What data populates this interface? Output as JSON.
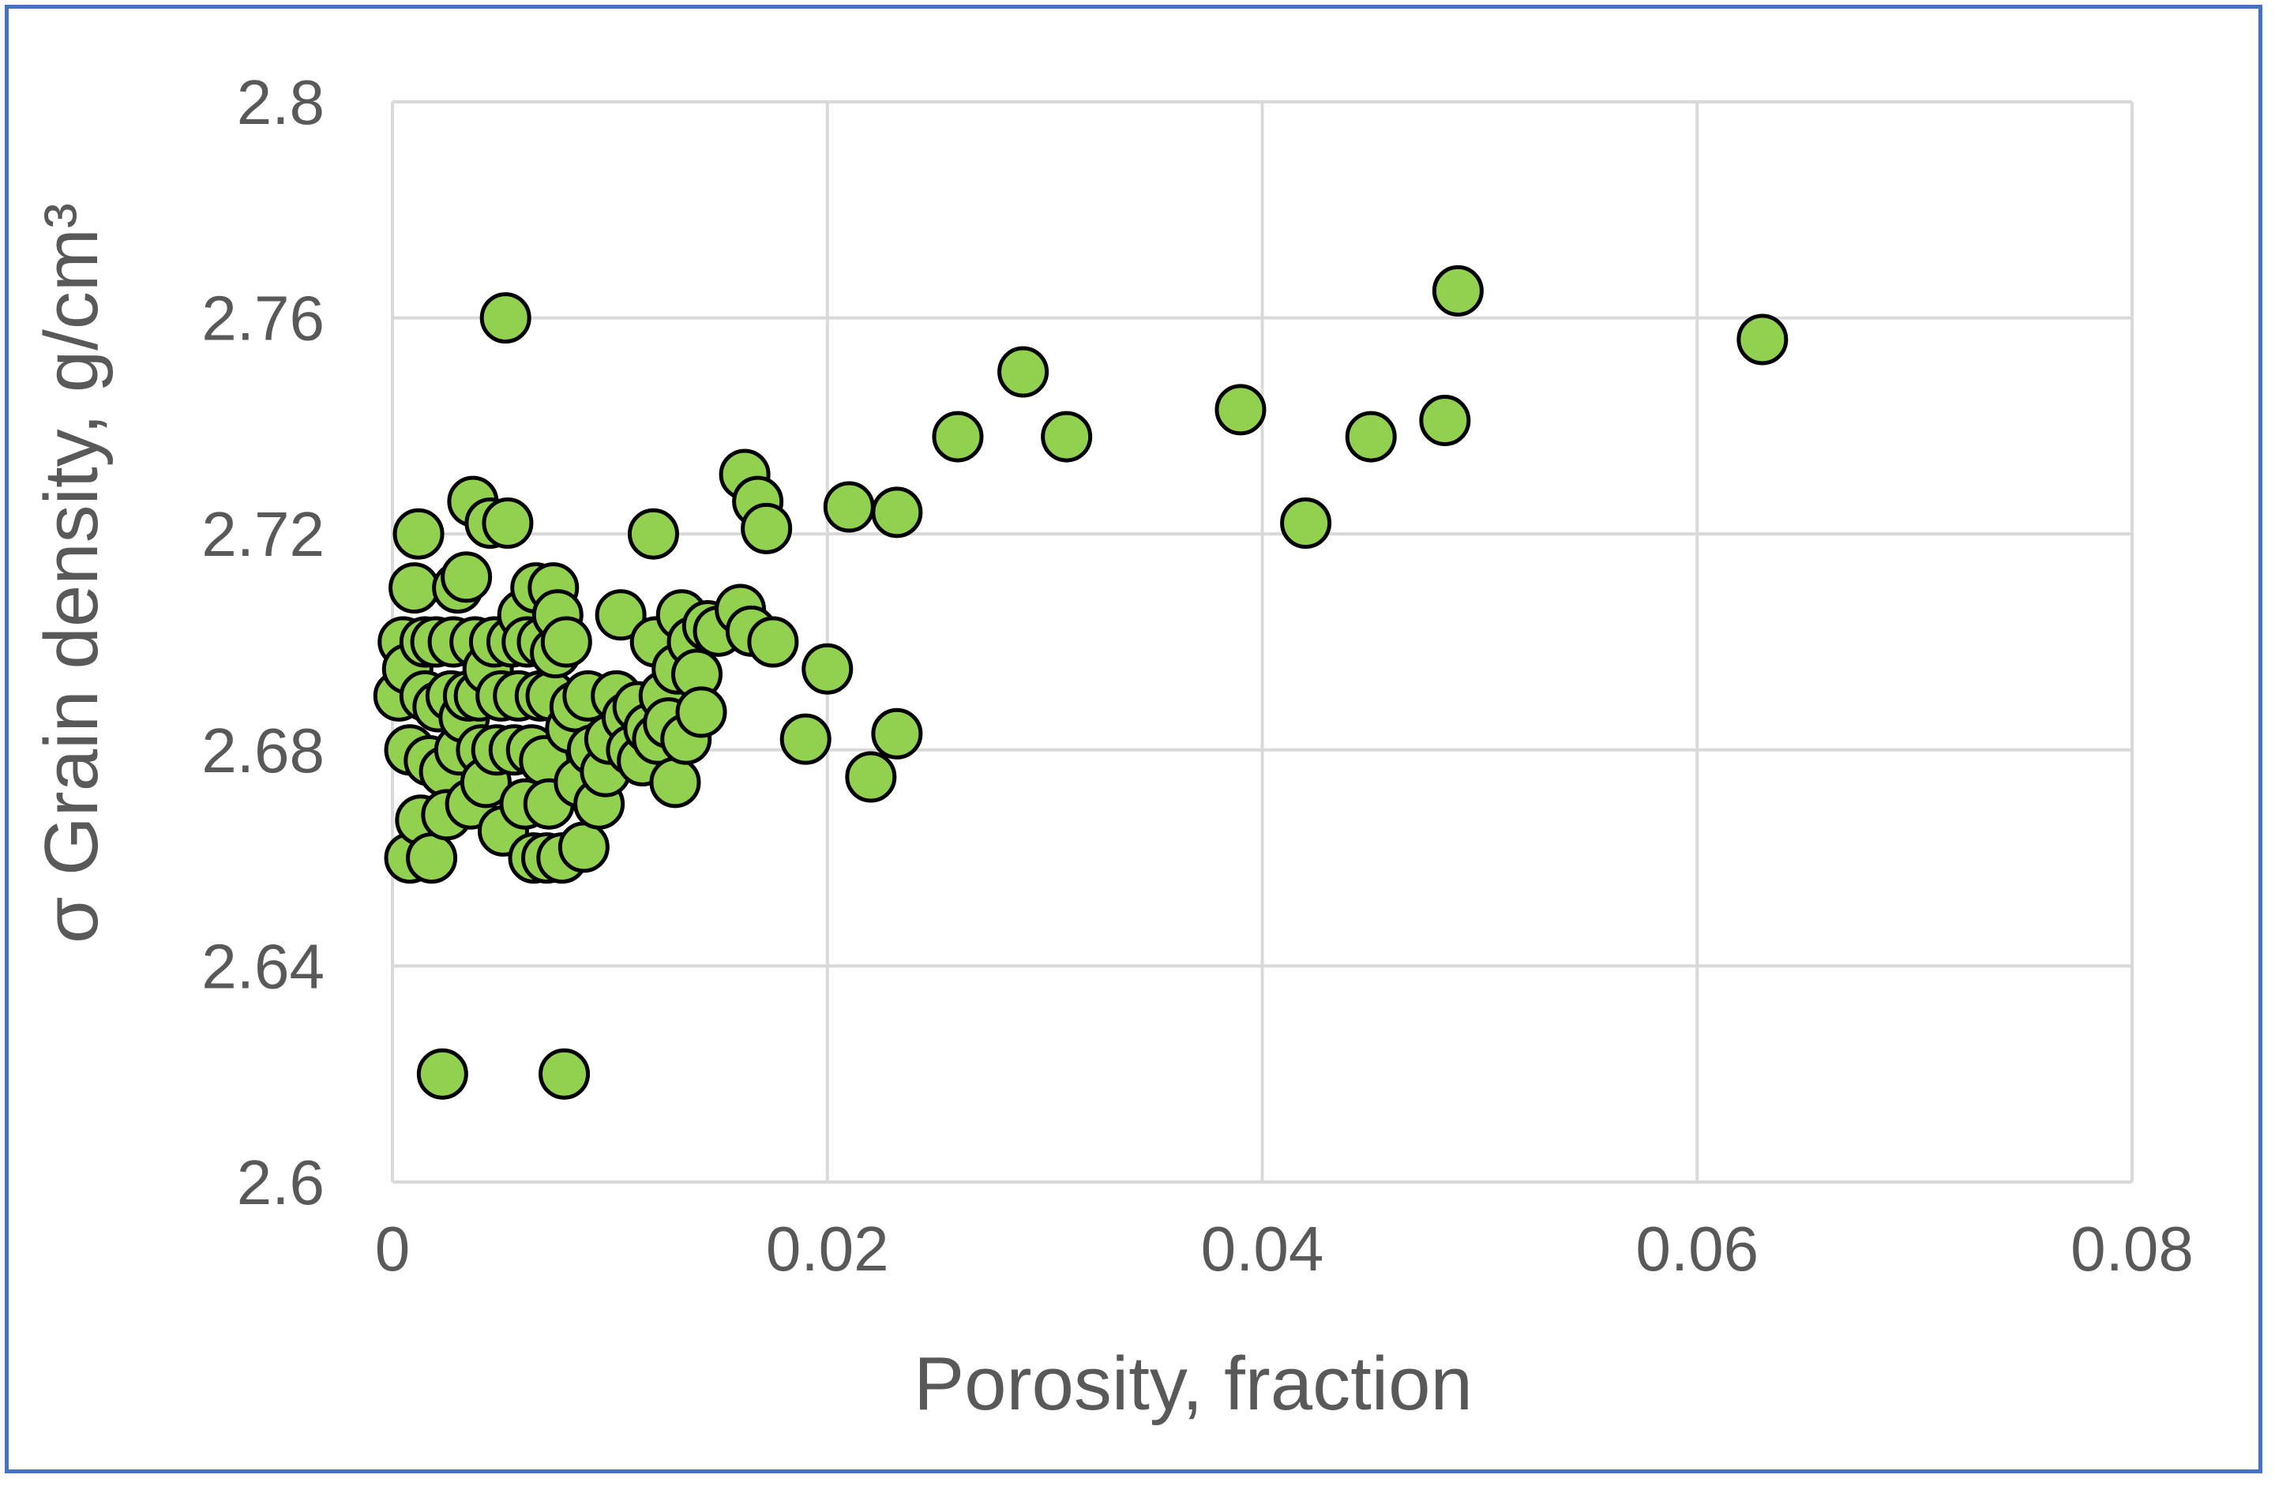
{
  "chart_data": {
    "type": "scatter",
    "xlabel": "Porosity, fraction",
    "ylabel": "σ Grain density, g/cm³",
    "xlim": [
      0,
      0.08
    ],
    "ylim": [
      2.6,
      2.8
    ],
    "xticks": [
      "0",
      "0.02",
      "0.04",
      "0.06",
      "0.08"
    ],
    "yticks": [
      "2.6",
      "2.64",
      "2.68",
      "2.72",
      "2.76",
      "2.8"
    ],
    "grid": true,
    "legend": "none",
    "marker_fill": "#92d050",
    "marker_stroke": "#000000",
    "frame_color": "#4472c4",
    "points": [
      [
        0.0003,
        2.69
      ],
      [
        0.0005,
        2.7
      ],
      [
        0.0007,
        2.695
      ],
      [
        0.0008,
        2.68
      ],
      [
        0.0008,
        2.66
      ],
      [
        0.001,
        2.71
      ],
      [
        0.0012,
        2.72
      ],
      [
        0.0013,
        2.667
      ],
      [
        0.0015,
        2.7
      ],
      [
        0.0015,
        2.69
      ],
      [
        0.0017,
        2.678
      ],
      [
        0.0018,
        2.66
      ],
      [
        0.002,
        2.7
      ],
      [
        0.0021,
        2.688
      ],
      [
        0.0023,
        2.62
      ],
      [
        0.0024,
        2.676
      ],
      [
        0.0025,
        2.668
      ],
      [
        0.0027,
        2.69
      ],
      [
        0.0028,
        2.7
      ],
      [
        0.003,
        2.71
      ],
      [
        0.0031,
        2.68
      ],
      [
        0.0033,
        2.686
      ],
      [
        0.0034,
        2.712
      ],
      [
        0.0035,
        2.69
      ],
      [
        0.0036,
        2.67
      ],
      [
        0.0037,
        2.726
      ],
      [
        0.0038,
        2.7
      ],
      [
        0.004,
        2.69
      ],
      [
        0.0041,
        2.68
      ],
      [
        0.0043,
        2.674
      ],
      [
        0.0044,
        2.695
      ],
      [
        0.0045,
        2.722
      ],
      [
        0.0047,
        2.7
      ],
      [
        0.0048,
        2.68
      ],
      [
        0.005,
        2.69
      ],
      [
        0.0051,
        2.665
      ],
      [
        0.0052,
        2.76
      ],
      [
        0.0053,
        2.722
      ],
      [
        0.0055,
        2.7
      ],
      [
        0.0056,
        2.68
      ],
      [
        0.0058,
        2.69
      ],
      [
        0.006,
        2.705
      ],
      [
        0.0061,
        2.67
      ],
      [
        0.0062,
        2.7
      ],
      [
        0.0064,
        2.68
      ],
      [
        0.0065,
        2.66
      ],
      [
        0.0066,
        2.71
      ],
      [
        0.0068,
        2.69
      ],
      [
        0.0069,
        2.7
      ],
      [
        0.007,
        2.678
      ],
      [
        0.0071,
        2.66
      ],
      [
        0.0072,
        2.67
      ],
      [
        0.0073,
        2.69
      ],
      [
        0.0074,
        2.71
      ],
      [
        0.0075,
        2.698
      ],
      [
        0.0076,
        2.705
      ],
      [
        0.0078,
        2.66
      ],
      [
        0.0079,
        2.62
      ],
      [
        0.008,
        2.7
      ],
      [
        0.0082,
        2.684
      ],
      [
        0.0084,
        2.688
      ],
      [
        0.0086,
        2.674
      ],
      [
        0.0088,
        2.662
      ],
      [
        0.009,
        2.69
      ],
      [
        0.0092,
        2.68
      ],
      [
        0.0095,
        2.67
      ],
      [
        0.0098,
        2.676
      ],
      [
        0.01,
        2.682
      ],
      [
        0.0103,
        2.69
      ],
      [
        0.0105,
        2.705
      ],
      [
        0.0108,
        2.686
      ],
      [
        0.011,
        2.68
      ],
      [
        0.0113,
        2.688
      ],
      [
        0.0115,
        2.678
      ],
      [
        0.0118,
        2.684
      ],
      [
        0.012,
        2.72
      ],
      [
        0.0121,
        2.7
      ],
      [
        0.0122,
        2.682
      ],
      [
        0.0125,
        2.69
      ],
      [
        0.0127,
        2.685
      ],
      [
        0.013,
        2.674
      ],
      [
        0.0131,
        2.695
      ],
      [
        0.0133,
        2.705
      ],
      [
        0.0135,
        2.682
      ],
      [
        0.0138,
        2.7
      ],
      [
        0.014,
        2.694
      ],
      [
        0.0142,
        2.687
      ],
      [
        0.0145,
        2.703
      ],
      [
        0.015,
        2.702
      ],
      [
        0.016,
        2.706
      ],
      [
        0.0162,
        2.731
      ],
      [
        0.0165,
        2.702
      ],
      [
        0.0168,
        2.726
      ],
      [
        0.0172,
        2.721
      ],
      [
        0.0175,
        2.7
      ],
      [
        0.019,
        2.682
      ],
      [
        0.02,
        2.695
      ],
      [
        0.021,
        2.725
      ],
      [
        0.022,
        2.675
      ],
      [
        0.0232,
        2.683
      ],
      [
        0.0232,
        2.724
      ],
      [
        0.026,
        2.738
      ],
      [
        0.029,
        2.75
      ],
      [
        0.031,
        2.738
      ],
      [
        0.039,
        2.743
      ],
      [
        0.042,
        2.722
      ],
      [
        0.045,
        2.738
      ],
      [
        0.0484,
        2.741
      ],
      [
        0.049,
        2.765
      ],
      [
        0.063,
        2.756
      ]
    ]
  }
}
